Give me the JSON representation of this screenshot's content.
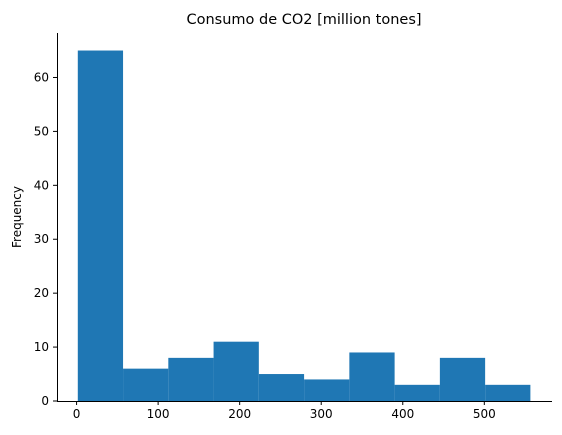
{
  "chart_data": {
    "type": "bar",
    "title": "Consumo de CO2 [million tones]",
    "xlabel": "",
    "ylabel": "Frequency",
    "bin_edges": [
      1.5,
      57.0,
      112.5,
      168.0,
      223.5,
      279.0,
      334.5,
      390.0,
      445.5,
      501.0,
      556.5
    ],
    "values": [
      65,
      6,
      8,
      11,
      5,
      4,
      9,
      3,
      8,
      3
    ],
    "xlim": [
      -24,
      583
    ],
    "ylim": [
      0,
      68.25
    ],
    "xticks": [
      0,
      100,
      200,
      300,
      400,
      500
    ],
    "yticks": [
      0,
      10,
      20,
      30,
      40,
      50,
      60
    ],
    "bar_color": "#1f77b4",
    "grid": false,
    "spines": [
      "left",
      "bottom"
    ]
  }
}
